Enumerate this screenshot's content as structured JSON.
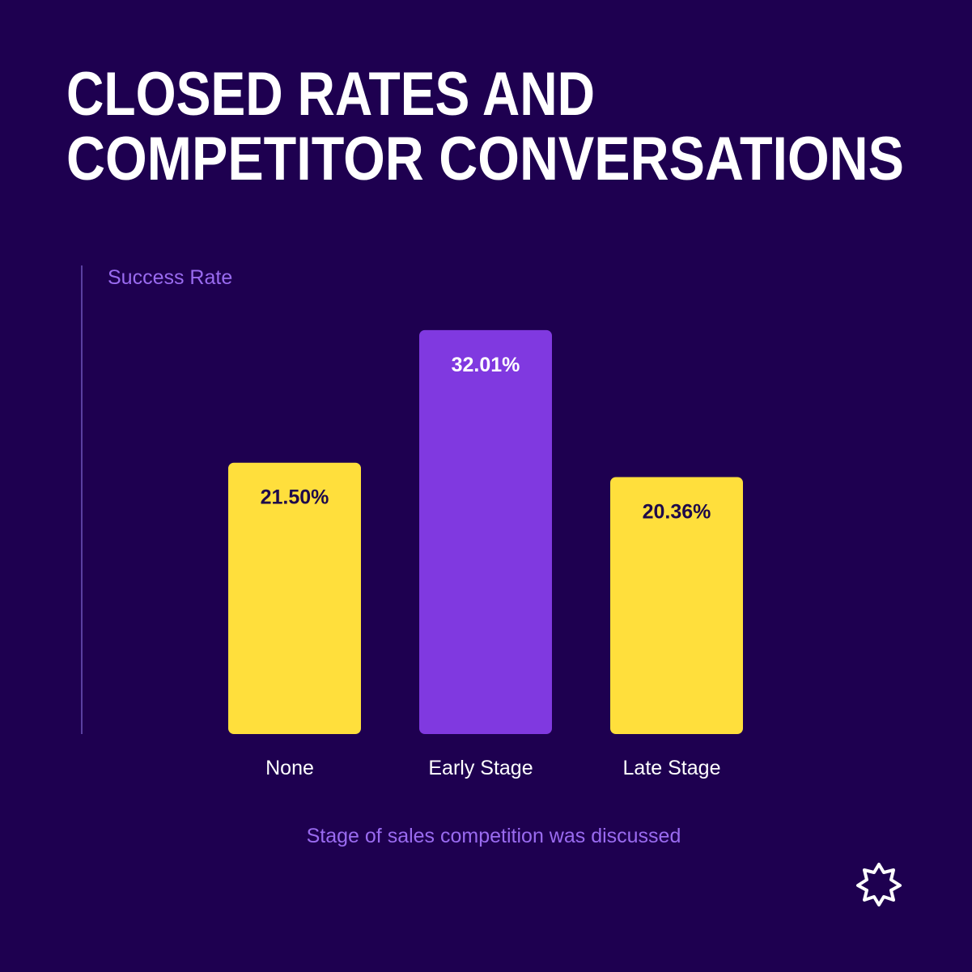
{
  "chart_data": {
    "type": "bar",
    "title": [
      "CLOSED RATES AND",
      "COMPETITOR CONVERSATIONS"
    ],
    "y_label": "Success Rate",
    "x_label": "Stage of sales competition was discussed",
    "categories": [
      "None",
      "Early Stage",
      "Late Stage"
    ],
    "values": [
      21.5,
      32.01,
      20.36
    ],
    "value_labels": [
      "21.50%",
      "32.01%",
      "20.36%"
    ],
    "colors": [
      "#ffdf3c",
      "#8039e0",
      "#ffdf3c"
    ],
    "label_colors": [
      "#1e0a4a",
      "#ffffff",
      "#1e0a4a"
    ],
    "ylim": [
      0,
      37
    ]
  }
}
